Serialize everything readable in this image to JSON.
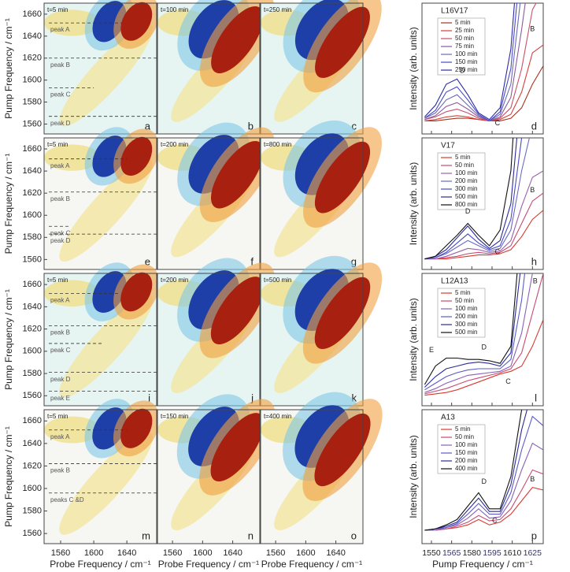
{
  "contour_axes": {
    "xlabel": "Probe Frequency / cm⁻¹",
    "ylabel": "Pump Frequency / cm⁻¹",
    "xlim": [
      1540,
      1676
    ],
    "ylim": [
      1551,
      1670
    ],
    "xticks": [
      1560,
      1600,
      1640
    ],
    "yticks": [
      1560,
      1580,
      1600,
      1620,
      1640,
      1660
    ]
  },
  "contour_rows": [
    {
      "panels": [
        {
          "time": "t=5 min",
          "letter": "a",
          "peaks": [
            {
              "label": "peak A",
              "y": 1652,
              "x_end": 1634
            },
            {
              "label": "peak B",
              "y": 1620,
              "x_end": 1676
            },
            {
              "label": "peak C",
              "y": 1593,
              "x_end": 1600
            },
            {
              "label": "peak D",
              "y": 1567,
              "x_end": 1676
            }
          ]
        },
        {
          "time": "t=100 min",
          "letter": "b"
        },
        {
          "time": "t=250 min",
          "letter": "c"
        }
      ]
    },
    {
      "panels": [
        {
          "time": "t=5 min",
          "letter": "e",
          "peaks": [
            {
              "label": "peak A",
              "y": 1651,
              "x_end": 1640
            },
            {
              "label": "peak B",
              "y": 1621,
              "x_end": 1676
            },
            {
              "label": "peak C",
              "y": 1590,
              "x_end": 1572
            },
            {
              "label": "peak D",
              "y": 1583,
              "x_end": 1676
            }
          ]
        },
        {
          "time": "t=200 min",
          "letter": "f"
        },
        {
          "time": "t=800 min",
          "letter": "g"
        }
      ]
    },
    {
      "panels": [
        {
          "time": "t=5 min",
          "letter": "i",
          "peaks": [
            {
              "label": "peak A",
              "y": 1652,
              "x_end": 1632
            },
            {
              "label": "peak B",
              "y": 1623,
              "x_end": 1676
            },
            {
              "label": "peak C",
              "y": 1607,
              "x_end": 1610
            },
            {
              "label": "peak D",
              "y": 1581,
              "x_end": 1676
            },
            {
              "label": "peak E",
              "y": 1564,
              "x_end": 1676
            }
          ]
        },
        {
          "time": "t=200 min",
          "letter": "j"
        },
        {
          "time": "t=500 min",
          "letter": "k"
        }
      ]
    },
    {
      "panels": [
        {
          "time": "t=5 min",
          "letter": "m",
          "peaks": [
            {
              "label": "peak A",
              "y": 1652,
              "x_end": 1640
            },
            {
              "label": "peak B",
              "y": 1622,
              "x_end": 1676
            },
            {
              "label": "peaks C &D",
              "y": 1596,
              "x_end": 1676
            }
          ]
        },
        {
          "time": "t=150 min",
          "letter": "n"
        },
        {
          "time": "t=400 min",
          "letter": "o"
        }
      ]
    }
  ],
  "spectrum_axes": {
    "xlabel": "Pump Frequency / cm⁻¹",
    "ylabel": "Intensity (arb. units)",
    "xlim": [
      1543,
      1633
    ],
    "ylim": [
      0,
      100
    ],
    "xticks": [
      1550,
      1565,
      1580,
      1595,
      1610,
      1625
    ],
    "x": [
      1545,
      1553,
      1561,
      1569,
      1577,
      1585,
      1593,
      1601,
      1609,
      1617,
      1625,
      1633
    ]
  },
  "spectra": [
    {
      "title": "L16V17",
      "letter": "d",
      "peak_labels": [
        {
          "label": "D",
          "x": 1573,
          "y": 48
        },
        {
          "label": "C",
          "x": 1599,
          "y": 8
        },
        {
          "label": "B",
          "x": 1625,
          "y": 80
        }
      ],
      "series": [
        {
          "name": "5 min",
          "color": "#a8321e",
          "values": [
            10,
            10,
            11,
            12,
            12,
            11,
            10,
            10,
            12,
            20,
            38,
            52
          ]
        },
        {
          "name": "25 min",
          "color": "#d8403a",
          "values": [
            10,
            11,
            13,
            14,
            13,
            11,
            10,
            11,
            15,
            32,
            62,
            68
          ]
        },
        {
          "name": "50 min",
          "color": "#c8506a",
          "values": [
            11,
            13,
            17,
            19,
            16,
            12,
            10,
            12,
            20,
            50,
            95,
            110
          ]
        },
        {
          "name": "75 min",
          "color": "#8a5aa0",
          "values": [
            11,
            14,
            21,
            24,
            19,
            13,
            10,
            13,
            28,
            80,
            140,
            150
          ]
        },
        {
          "name": "100 min",
          "color": "#6a6ab8",
          "values": [
            12,
            16,
            26,
            30,
            22,
            14,
            10,
            15,
            38,
            110,
            170,
            180
          ]
        },
        {
          "name": "150 min",
          "color": "#4a4ac8",
          "values": [
            12,
            18,
            32,
            36,
            26,
            15,
            10,
            17,
            50,
            140,
            200,
            200
          ]
        },
        {
          "name": "250 min",
          "color": "#2a2aa8",
          "values": [
            13,
            22,
            38,
            42,
            30,
            16,
            11,
            20,
            65,
            170,
            230,
            230
          ]
        }
      ]
    },
    {
      "title": "V17",
      "letter": "h",
      "peak_labels": [
        {
          "label": "D",
          "x": 1577,
          "y": 44
        },
        {
          "label": "C",
          "x": 1599,
          "y": 13
        },
        {
          "label": "B",
          "x": 1625,
          "y": 60
        }
      ],
      "series": [
        {
          "name": "5 min",
          "color": "#d83a30",
          "values": [
            8,
            8,
            8,
            9,
            10,
            11,
            11,
            12,
            15,
            25,
            38,
            45
          ]
        },
        {
          "name": "50 min",
          "color": "#c84a70",
          "values": [
            8,
            8,
            9,
            10,
            12,
            13,
            12,
            13,
            18,
            35,
            52,
            58
          ]
        },
        {
          "name": "100 min",
          "color": "#9a60b0",
          "values": [
            8,
            8,
            10,
            13,
            16,
            15,
            13,
            14,
            22,
            48,
            70,
            75
          ]
        },
        {
          "name": "200 min",
          "color": "#6a6ac8",
          "values": [
            8,
            9,
            12,
            17,
            22,
            18,
            14,
            16,
            30,
            75,
            110,
            115
          ]
        },
        {
          "name": "300 min",
          "color": "#4a4ac8",
          "values": [
            8,
            9,
            13,
            20,
            27,
            20,
            15,
            18,
            38,
            100,
            150,
            150
          ]
        },
        {
          "name": "500 min",
          "color": "#2a2a98",
          "values": [
            8,
            10,
            15,
            24,
            33,
            23,
            16,
            22,
            50,
            140,
            200,
            200
          ]
        },
        {
          "name": "800 min",
          "color": "#111111",
          "values": [
            8,
            10,
            18,
            26,
            35,
            26,
            18,
            30,
            75,
            200,
            250,
            250
          ]
        }
      ]
    },
    {
      "title": "L12A13",
      "letter": "l",
      "peak_labels": [
        {
          "label": "E",
          "x": 1550,
          "y": 42
        },
        {
          "label": "D",
          "x": 1589,
          "y": 44
        },
        {
          "label": "C",
          "x": 1607,
          "y": 18
        },
        {
          "label": "B",
          "x": 1627,
          "y": 94
        }
      ],
      "series": [
        {
          "name": "5 min",
          "color": "#d83a30",
          "values": [
            8,
            9,
            10,
            12,
            15,
            18,
            21,
            24,
            26,
            30,
            45,
            65
          ]
        },
        {
          "name": "50 min",
          "color": "#c84a70",
          "values": [
            9,
            11,
            13,
            16,
            19,
            21,
            23,
            25,
            28,
            40,
            70,
            100
          ]
        },
        {
          "name": "100 min",
          "color": "#8a60b8",
          "values": [
            10,
            13,
            17,
            20,
            23,
            24,
            25,
            26,
            30,
            55,
            100,
            140
          ]
        },
        {
          "name": "200 min",
          "color": "#5a5ac8",
          "values": [
            12,
            17,
            22,
            25,
            27,
            28,
            28,
            28,
            35,
            80,
            150,
            200
          ]
        },
        {
          "name": "300 min",
          "color": "#2a2a98",
          "values": [
            14,
            22,
            28,
            30,
            32,
            33,
            32,
            30,
            40,
            110,
            200,
            250
          ]
        },
        {
          "name": "500 min",
          "color": "#111111",
          "values": [
            16,
            30,
            36,
            36,
            35,
            35,
            34,
            32,
            45,
            140,
            250,
            300
          ]
        }
      ]
    },
    {
      "title": "A13",
      "letter": "p",
      "peak_labels": [
        {
          "label": "D",
          "x": 1589,
          "y": 46
        },
        {
          "label": "C",
          "x": 1597,
          "y": 17
        },
        {
          "label": "B",
          "x": 1625,
          "y": 48
        }
      ],
      "series": [
        {
          "name": "5 min",
          "color": "#d83a30",
          "values": [
            10,
            10,
            11,
            12,
            14,
            18,
            14,
            16,
            22,
            32,
            42,
            40
          ]
        },
        {
          "name": "50 min",
          "color": "#c84a70",
          "values": [
            10,
            10,
            11,
            13,
            16,
            21,
            17,
            18,
            26,
            40,
            55,
            52
          ]
        },
        {
          "name": "100 min",
          "color": "#8a60b8",
          "values": [
            10,
            10,
            12,
            14,
            19,
            26,
            19,
            20,
            32,
            55,
            75,
            70
          ]
        },
        {
          "name": "150 min",
          "color": "#5a5ac8",
          "values": [
            10,
            11,
            12,
            15,
            22,
            30,
            22,
            22,
            38,
            70,
            95,
            88
          ]
        },
        {
          "name": "200 min",
          "color": "#2a2a98",
          "values": [
            10,
            11,
            13,
            16,
            25,
            34,
            24,
            24,
            44,
            85,
            115,
            100
          ]
        },
        {
          "name": "400 min",
          "color": "#111111",
          "values": [
            10,
            11,
            14,
            18,
            28,
            38,
            26,
            26,
            50,
            100,
            135,
            110
          ]
        }
      ]
    }
  ]
}
